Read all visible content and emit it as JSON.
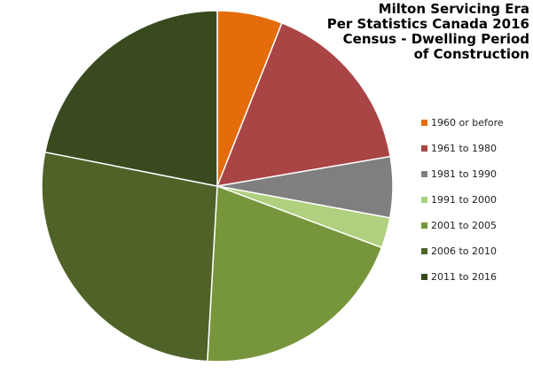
{
  "chart_data": {
    "type": "pie",
    "title_lines": [
      "Milton Servicing Era",
      "Per Statistics Canada 2016",
      "Census - Dwelling Period",
      "of Construction"
    ],
    "legend_position": "right",
    "categories": [
      "1960 or before",
      "1961 to 1980",
      "1981 to 1990",
      "1991 to 2000",
      "2001 to 2005",
      "2006 to 2010",
      "2011 to 2016"
    ],
    "values": [
      6.0,
      16.3,
      5.6,
      2.8,
      20.2,
      27.2,
      21.9
    ],
    "colors": [
      "#E46C0A",
      "#AA4545",
      "#7F7F7F",
      "#B0CF7F",
      "#77963C",
      "#4F6228",
      "#394A1E"
    ]
  }
}
